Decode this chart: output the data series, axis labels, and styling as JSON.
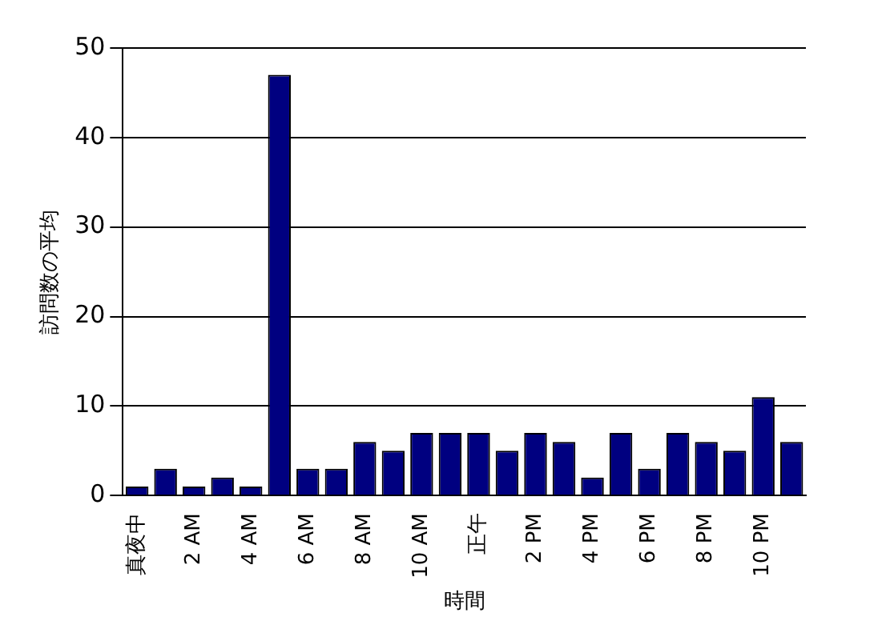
{
  "chart_data": {
    "type": "bar",
    "xlabel": "時間",
    "ylabel": "訪問数の平均",
    "categories": [
      "真夜中",
      null,
      "2 AM",
      null,
      "4 AM",
      null,
      "6 AM",
      null,
      "8 AM",
      null,
      "10 AM",
      null,
      "正午",
      null,
      "2 PM",
      null,
      "4 PM",
      null,
      "6 PM",
      null,
      "8 PM",
      null,
      "10 PM",
      null
    ],
    "values": [
      1,
      3,
      1,
      2,
      1,
      47,
      3,
      3,
      6,
      5,
      7,
      7,
      7,
      5,
      7,
      6,
      2,
      7,
      3,
      7,
      6,
      5,
      11,
      6
    ],
    "color": "#000080",
    "ylim": [
      0,
      50
    ],
    "yticks": [
      0,
      10,
      20,
      30,
      40,
      50
    ],
    "grid": "y"
  }
}
